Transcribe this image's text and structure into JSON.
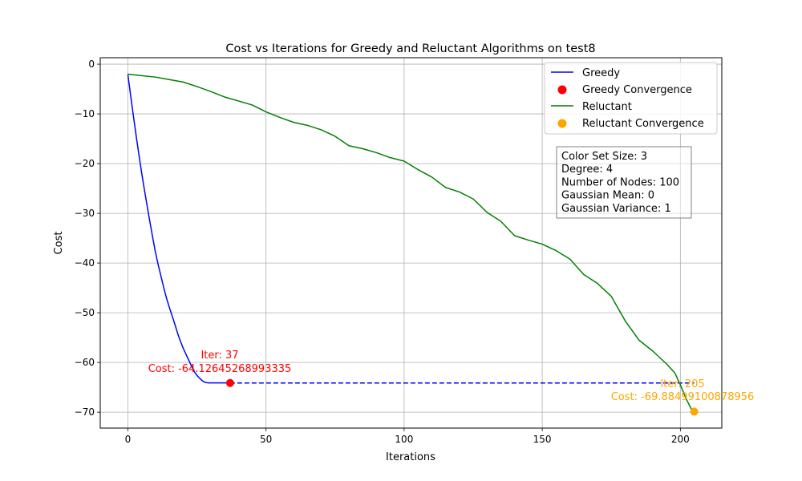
{
  "chart_data": {
    "type": "line",
    "title": "Cost vs Iterations for Greedy and Reluctant Algorithms on test8",
    "xlabel": "Iterations",
    "ylabel": "Cost",
    "xlim": [
      -10,
      215
    ],
    "ylim": [
      -73.2,
      1.3
    ],
    "xticks": [
      0,
      50,
      100,
      150,
      200
    ],
    "yticks": [
      0,
      -10,
      -20,
      -30,
      -40,
      -50,
      -60,
      -70
    ],
    "grid": true,
    "legend_position": "top-right",
    "series": [
      {
        "name": "Greedy",
        "color": "#0000ff",
        "style": "solid",
        "x": [
          0,
          1,
          2,
          3,
          4,
          5,
          6,
          7,
          8,
          9,
          10,
          11,
          12,
          13,
          14,
          15,
          16,
          17,
          18,
          19,
          20,
          21,
          22,
          23,
          24,
          25,
          26,
          27,
          28,
          29,
          30,
          31,
          32,
          33,
          34,
          35,
          36,
          37
        ],
        "y": [
          -2.1,
          -6.3,
          -10.4,
          -14.4,
          -18.2,
          -21.9,
          -25.3,
          -28.6,
          -31.8,
          -34.9,
          -37.9,
          -40.4,
          -42.7,
          -45.0,
          -47.1,
          -48.9,
          -50.6,
          -52.3,
          -54.1,
          -55.7,
          -57.1,
          -58.3,
          -59.5,
          -60.7,
          -61.8,
          -62.6,
          -63.2,
          -63.7,
          -64.0,
          -64.1,
          -64.1,
          -64.1,
          -64.1,
          -64.1,
          -64.1,
          -64.1,
          -64.1,
          -64.13
        ]
      },
      {
        "name": "Greedy (converged)",
        "color": "#0000ff",
        "style": "dashed",
        "x": [
          37,
          205
        ],
        "y": [
          -64.13,
          -64.13
        ]
      },
      {
        "name": "Reluctant",
        "color": "#008000",
        "style": "solid",
        "x": [
          0,
          5,
          10,
          15,
          20,
          25,
          30,
          35,
          40,
          45,
          50,
          55,
          60,
          65,
          70,
          75,
          80,
          85,
          90,
          95,
          100,
          105,
          110,
          115,
          120,
          125,
          130,
          135,
          140,
          145,
          150,
          155,
          160,
          165,
          170,
          175,
          180,
          185,
          190,
          195,
          198,
          200,
          202,
          204,
          205
        ],
        "y": [
          -2.0,
          -2.3,
          -2.6,
          -3.1,
          -3.6,
          -4.5,
          -5.5,
          -6.6,
          -7.4,
          -8.2,
          -9.6,
          -10.7,
          -11.7,
          -12.3,
          -13.2,
          -14.5,
          -16.4,
          -17.0,
          -17.8,
          -18.8,
          -19.5,
          -21.2,
          -22.7,
          -24.8,
          -25.7,
          -27.1,
          -29.8,
          -31.6,
          -34.5,
          -35.4,
          -36.2,
          -37.5,
          -39.2,
          -42.3,
          -44.1,
          -46.7,
          -51.6,
          -55.5,
          -57.7,
          -60.3,
          -62.1,
          -64.5,
          -67.2,
          -69.4,
          -69.88
        ]
      }
    ],
    "points": [
      {
        "name": "Greedy Convergence",
        "x": 37,
        "y": -64.13,
        "color": "#ff0000"
      },
      {
        "name": "Reluctant Convergence",
        "x": 205,
        "y": -69.88,
        "color": "#ffa500"
      }
    ],
    "annotations": [
      {
        "line1": "Iter: 37",
        "line2": "Cost: -64.12645268993335",
        "color": "#ff0000"
      },
      {
        "line1": "Iter: 205",
        "line2": "Cost: -69.88499100878956",
        "color": "#ffa500"
      }
    ],
    "info_box": [
      "Color Set Size: 3",
      "Degree: 4",
      "Number of Nodes: 100",
      "Gaussian Mean: 0",
      "Gaussian Variance: 1"
    ],
    "legend": [
      {
        "label": "Greedy",
        "kind": "line",
        "color": "#0000ff"
      },
      {
        "label": "Greedy Convergence",
        "kind": "marker",
        "color": "#ff0000"
      },
      {
        "label": "Reluctant",
        "kind": "line",
        "color": "#008000"
      },
      {
        "label": "Reluctant Convergence",
        "kind": "marker",
        "color": "#ffa500"
      }
    ]
  }
}
